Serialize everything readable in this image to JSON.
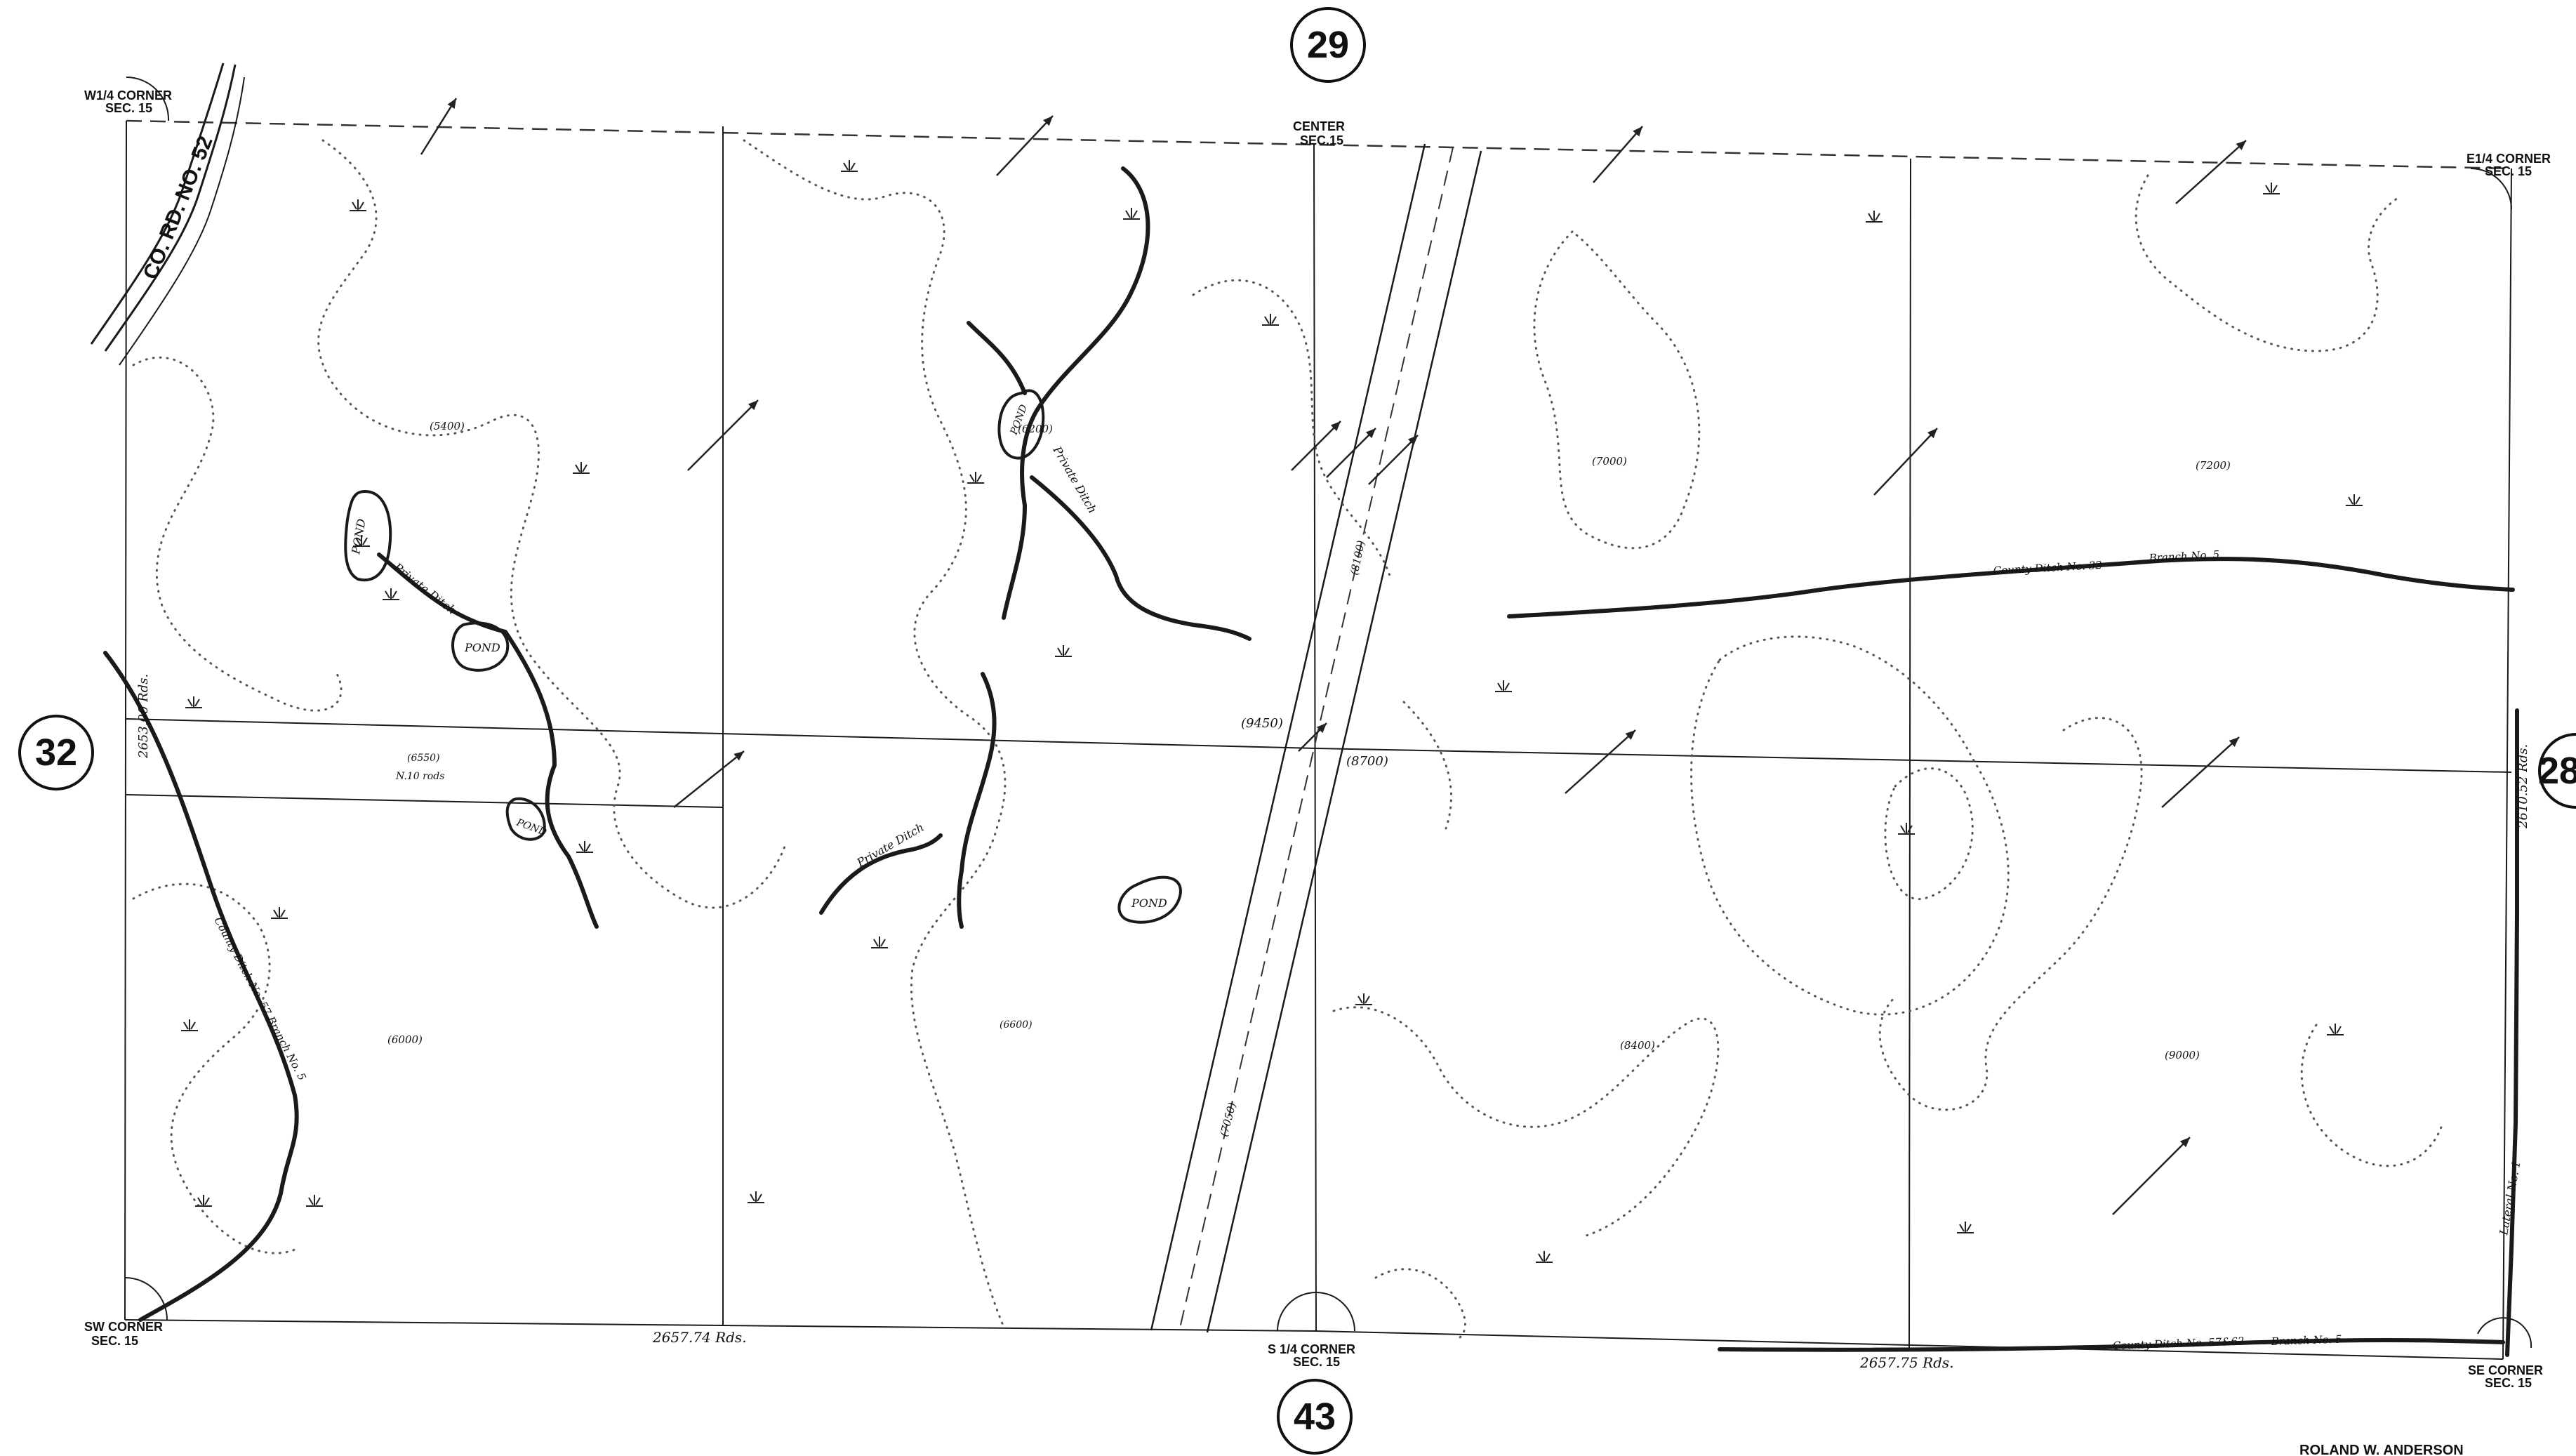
{
  "section_markers": {
    "north": "29",
    "west": "32",
    "east": "28",
    "south": "43"
  },
  "corners": {
    "nw": [
      "W1/4 CORNER",
      "SEC. 15"
    ],
    "center": [
      "CENTER",
      "SEC.15"
    ],
    "ne": [
      "E1/4 CORNER",
      "SEC. 15"
    ],
    "sw": [
      "SW CORNER",
      "SEC. 15"
    ],
    "s_quarter": [
      "S 1/4 CORNER",
      "SEC. 15"
    ],
    "se": [
      "SE CORNER",
      "SEC. 15"
    ]
  },
  "road_label": "CO. RD. NO. 52",
  "distances": {
    "south_west_half": "2657.74 Rds.",
    "south_east_half": "2657.75 Rds.",
    "west_side": "2653.00 Rds.",
    "east_side": "2610.52 Rds."
  },
  "ponds": [
    "POND",
    "POND",
    "POND",
    "POND",
    "POND"
  ],
  "ditch_labels": {
    "private_1": "Private Ditch",
    "private_2": "Private Ditch",
    "private_3": "Private Ditch",
    "county_32": "County Ditch No. 32",
    "branch_5": "Branch No. 5",
    "county_south": "County Ditch No. 57&62",
    "branch_5_south": "Branch No. 5",
    "lateral": "Lateral No. 1",
    "sw_ditch": "County Ditch No. 57 Branch No. 5"
  },
  "elevation_labels": [
    "(5400)",
    "(6200)",
    "(7000)",
    "(7200)",
    "(6550)",
    "(8100)",
    "(9450)",
    "(8700)",
    "(8400)",
    "(9000)",
    "(6000)",
    "(6600)",
    "(7050)"
  ],
  "notes": {
    "n_roads": "N.10 rods",
    "surveyor": "ROLAND W. ANDERSON"
  },
  "marsh_symbol": "marsh-symbol"
}
